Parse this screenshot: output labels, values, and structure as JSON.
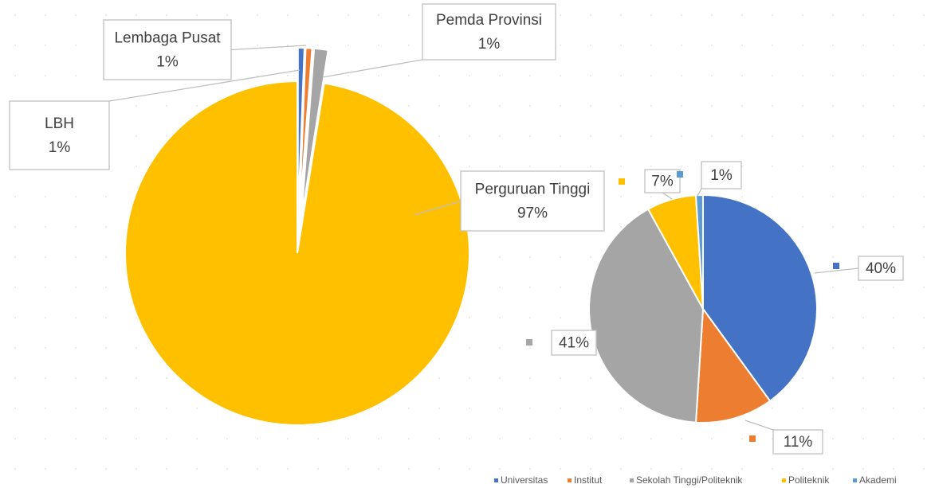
{
  "chart_data": [
    {
      "type": "pie",
      "categories": [
        "LBH",
        "Lembaga Pusat",
        "Pemda Provinsi",
        "Perguruan Tinggi"
      ],
      "values": [
        0.6,
        0.6,
        1.3,
        97.5
      ],
      "value_labels": [
        "1%",
        "1%",
        "1%",
        "97%"
      ],
      "colors": [
        "#4472c4",
        "#ed7d31",
        "#a5a5a5",
        "#ffc000"
      ]
    },
    {
      "type": "pie",
      "categories": [
        "Universitas",
        "Institut",
        "Sekolah Tinggi/Politeknik",
        "Politeknik",
        "Akademi"
      ],
      "values": [
        40,
        11,
        41,
        7,
        1
      ],
      "value_labels": [
        "40%",
        "11%",
        "41%",
        "7%",
        "1%"
      ],
      "colors": [
        "#4472c4",
        "#ed7d31",
        "#a5a5a5",
        "#ffc000",
        "#5b9bd5"
      ],
      "legend": "bottom"
    }
  ]
}
